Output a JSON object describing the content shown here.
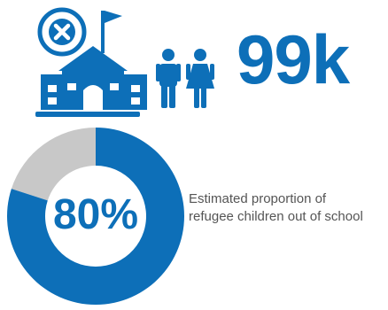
{
  "colors": {
    "primary": "#0d6fb8",
    "remainder": "#c8c8c8",
    "text": "#555555"
  },
  "icons": [
    "school-out-of-school-icon",
    "children-icon"
  ],
  "headline": {
    "value": "99k"
  },
  "chart_data": {
    "type": "pie",
    "values": [
      80,
      20
    ],
    "center_label": "80%",
    "caption_lines": [
      "Estimated proportion of",
      "refugee children out of school"
    ]
  }
}
